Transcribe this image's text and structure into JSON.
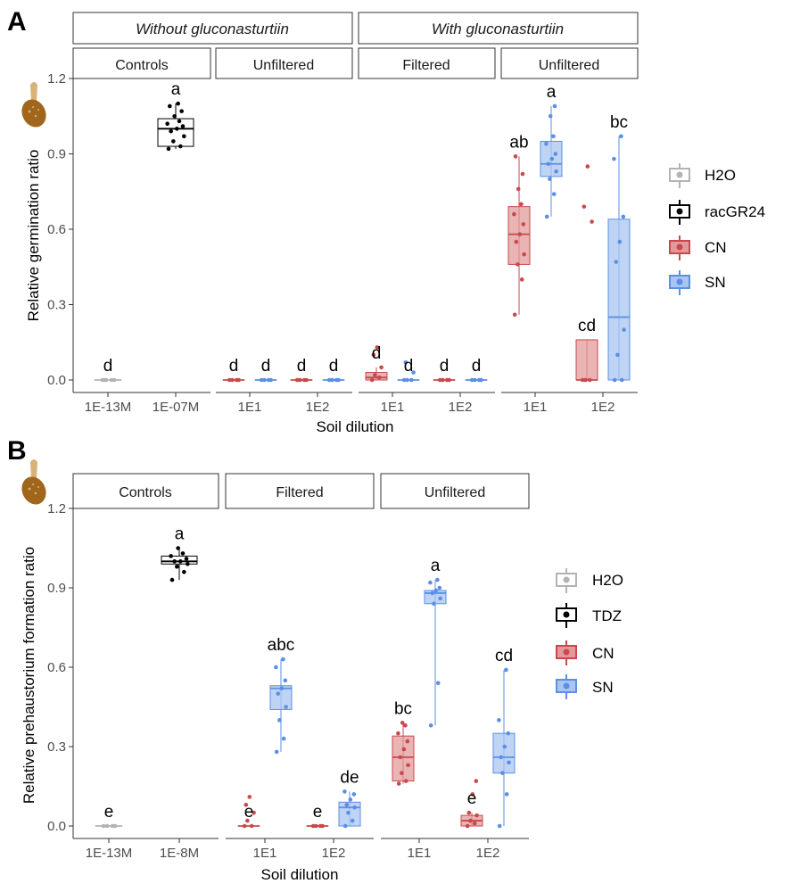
{
  "colors": {
    "H2O": "#b3b3b3",
    "control_black": "#000000",
    "CN": "#c8494d",
    "CN_fill": "#e3999b",
    "SN": "#5b8fe3",
    "SN_fill": "#a9c5f2",
    "seed_dark": "#a0661c",
    "seed_light": "#d9b27a"
  },
  "panels": [
    {
      "label": "A",
      "ylabel": "Relative germination ratio",
      "xlabel": "Soil dilution",
      "ylim": [
        0,
        1.2
      ],
      "yticks": [
        "0.0",
        "0.3",
        "0.6",
        "0.9",
        "1.2"
      ],
      "top_strips": [
        "Without gluconasturtiin",
        "With gluconasturtiin"
      ],
      "legend": [
        "H2O",
        "racGR24",
        "CN",
        "SN"
      ],
      "facets": [
        {
          "title": "Controls",
          "categories": [
            "1E-13M",
            "1E-07M"
          ],
          "groups": [
            {
              "category": "1E-13M",
              "series": "H2O",
              "min": 0,
              "q1": 0,
              "median": 0,
              "q3": 0,
              "max": 0,
              "points": [
                0,
                0,
                0,
                0,
                0
              ],
              "letter": "d"
            },
            {
              "category": "1E-07M",
              "series": "racGR24",
              "min": 0.92,
              "q1": 0.93,
              "median": 1.0,
              "q3": 1.04,
              "max": 1.1,
              "points": [
                0.92,
                0.93,
                0.95,
                0.97,
                0.99,
                1.0,
                1.01,
                1.02,
                1.03,
                1.05,
                1.07,
                1.09,
                1.1
              ],
              "letter": "a"
            }
          ]
        },
        {
          "title": "Unfiltered",
          "categories": [
            "1E1",
            "1E2"
          ],
          "groups": [
            {
              "category": "1E1",
              "series": "CN",
              "min": 0,
              "q1": 0,
              "median": 0,
              "q3": 0,
              "max": 0,
              "points": [
                0,
                0,
                0,
                0
              ],
              "letter": "d"
            },
            {
              "category": "1E1",
              "series": "SN",
              "min": 0,
              "q1": 0,
              "median": 0,
              "q3": 0,
              "max": 0,
              "points": [
                0,
                0,
                0,
                0
              ],
              "letter": "d"
            },
            {
              "category": "1E2",
              "series": "CN",
              "min": 0,
              "q1": 0,
              "median": 0,
              "q3": 0,
              "max": 0,
              "points": [
                0,
                0,
                0,
                0
              ],
              "letter": "d"
            },
            {
              "category": "1E2",
              "series": "SN",
              "min": 0,
              "q1": 0,
              "median": 0,
              "q3": 0,
              "max": 0,
              "points": [
                0,
                0,
                0,
                0
              ],
              "letter": "d"
            }
          ]
        },
        {
          "title": "Filtered",
          "categories": [
            "1E1",
            "1E2"
          ],
          "groups": [
            {
              "category": "1E1",
              "series": "CN",
              "min": 0,
              "q1": 0.0,
              "median": 0.01,
              "q3": 0.03,
              "max": 0.05,
              "points": [
                0,
                0.01,
                0.02,
                0.05,
                0.1,
                0.13
              ],
              "letter": "d"
            },
            {
              "category": "1E1",
              "series": "SN",
              "min": 0,
              "q1": 0,
              "median": 0,
              "q3": 0,
              "max": 0,
              "points": [
                0,
                0,
                0,
                0.03,
                0.07
              ],
              "letter": "d"
            },
            {
              "category": "1E2",
              "series": "CN",
              "min": 0,
              "q1": 0,
              "median": 0,
              "q3": 0,
              "max": 0,
              "points": [
                0,
                0,
                0,
                0
              ],
              "letter": "d"
            },
            {
              "category": "1E2",
              "series": "SN",
              "min": 0,
              "q1": 0,
              "median": 0,
              "q3": 0,
              "max": 0,
              "points": [
                0,
                0,
                0,
                0
              ],
              "letter": "d"
            }
          ]
        },
        {
          "title": "Unfiltered",
          "categories": [
            "1E1",
            "1E2"
          ],
          "groups": [
            {
              "category": "1E1",
              "series": "CN",
              "min": 0.26,
              "q1": 0.46,
              "median": 0.58,
              "q3": 0.69,
              "max": 0.89,
              "points": [
                0.26,
                0.4,
                0.46,
                0.5,
                0.55,
                0.58,
                0.62,
                0.66,
                0.7,
                0.76,
                0.82,
                0.89
              ],
              "letter": "ab"
            },
            {
              "category": "1E1",
              "series": "SN",
              "min": 0.65,
              "q1": 0.81,
              "median": 0.86,
              "q3": 0.95,
              "max": 1.09,
              "points": [
                0.65,
                0.74,
                0.8,
                0.83,
                0.86,
                0.88,
                0.9,
                0.94,
                0.97,
                1.05,
                1.09
              ],
              "letter": "a"
            },
            {
              "category": "1E2",
              "series": "CN",
              "min": 0,
              "q1": 0,
              "median": 0,
              "q3": 0.16,
              "max": 0.16,
              "points": [
                0,
                0,
                0,
                0.63,
                0.69,
                0.85
              ],
              "letter": "cd"
            },
            {
              "category": "1E2",
              "series": "SN",
              "min": 0,
              "q1": 0,
              "median": 0.25,
              "q3": 0.64,
              "max": 0.97,
              "points": [
                0,
                0,
                0.1,
                0.2,
                0.47,
                0.55,
                0.65,
                0.88,
                0.97
              ],
              "letter": "bc"
            }
          ]
        }
      ]
    },
    {
      "label": "B",
      "ylabel": "Relative prehaustorium formation ratio",
      "xlabel": "Soil dilution",
      "ylim": [
        0,
        1.2
      ],
      "yticks": [
        "0.0",
        "0.3",
        "0.6",
        "0.9",
        "1.2"
      ],
      "top_strips": [],
      "legend": [
        "H2O",
        "TDZ",
        "CN",
        "SN"
      ],
      "facets": [
        {
          "title": "Controls",
          "categories": [
            "1E-13M",
            "1E-8M"
          ],
          "groups": [
            {
              "category": "1E-13M",
              "series": "H2O",
              "min": 0,
              "q1": 0,
              "median": 0,
              "q3": 0,
              "max": 0,
              "points": [
                0,
                0,
                0,
                0
              ],
              "letter": "e"
            },
            {
              "category": "1E-8M",
              "series": "TDZ",
              "min": 0.93,
              "q1": 0.99,
              "median": 1.0,
              "q3": 1.02,
              "max": 1.05,
              "points": [
                0.93,
                0.96,
                0.98,
                0.99,
                1.0,
                1.0,
                1.01,
                1.02,
                1.03,
                1.05
              ],
              "letter": "a"
            }
          ]
        },
        {
          "title": "Filtered",
          "categories": [
            "1E1",
            "1E2"
          ],
          "groups": [
            {
              "category": "1E1",
              "series": "CN",
              "min": 0,
              "q1": 0,
              "median": 0,
              "q3": 0,
              "max": 0,
              "points": [
                0,
                0,
                0.02,
                0.05,
                0.08,
                0.11
              ],
              "letter": "e"
            },
            {
              "category": "1E1",
              "series": "SN",
              "min": 0.28,
              "q1": 0.44,
              "median": 0.52,
              "q3": 0.53,
              "max": 0.63,
              "points": [
                0.28,
                0.33,
                0.4,
                0.45,
                0.5,
                0.52,
                0.55,
                0.6,
                0.63
              ],
              "letter": "abc"
            },
            {
              "category": "1E2",
              "series": "CN",
              "min": 0,
              "q1": 0,
              "median": 0,
              "q3": 0,
              "max": 0,
              "points": [
                0,
                0,
                0,
                0
              ],
              "letter": "e"
            },
            {
              "category": "1E2",
              "series": "SN",
              "min": 0,
              "q1": 0,
              "median": 0.07,
              "q3": 0.09,
              "max": 0.13,
              "points": [
                0,
                0.02,
                0.05,
                0.07,
                0.08,
                0.1,
                0.12,
                0.13
              ],
              "letter": "de"
            }
          ]
        },
        {
          "title": "Unfiltered",
          "categories": [
            "1E1",
            "1E2"
          ],
          "groups": [
            {
              "category": "1E1",
              "series": "CN",
              "min": 0.16,
              "q1": 0.17,
              "median": 0.26,
              "q3": 0.34,
              "max": 0.39,
              "points": [
                0.16,
                0.17,
                0.2,
                0.23,
                0.26,
                0.29,
                0.32,
                0.35,
                0.38,
                0.39
              ],
              "letter": "bc"
            },
            {
              "category": "1E1",
              "series": "SN",
              "min": 0.38,
              "q1": 0.84,
              "median": 0.88,
              "q3": 0.89,
              "max": 0.93,
              "points": [
                0.38,
                0.54,
                0.84,
                0.86,
                0.88,
                0.89,
                0.9,
                0.92,
                0.93
              ],
              "letter": "a"
            },
            {
              "category": "1E2",
              "series": "CN",
              "min": 0,
              "q1": 0,
              "median": 0.02,
              "q3": 0.04,
              "max": 0.05,
              "points": [
                0,
                0.01,
                0.02,
                0.04,
                0.05,
                0.12,
                0.17
              ],
              "letter": "e"
            },
            {
              "category": "1E2",
              "series": "SN",
              "min": 0,
              "q1": 0.2,
              "median": 0.26,
              "q3": 0.35,
              "max": 0.59,
              "points": [
                0,
                0.12,
                0.2,
                0.24,
                0.26,
                0.3,
                0.35,
                0.4,
                0.59
              ],
              "letter": "cd"
            }
          ]
        }
      ]
    }
  ],
  "chart_data": [
    {
      "type": "box",
      "title": "A",
      "ylabel": "Relative germination ratio",
      "xlabel": "Soil dilution",
      "ylim": [
        0,
        1.2
      ],
      "facets": [
        "Without gluconasturtiin / Controls",
        "Without gluconasturtiin / Unfiltered",
        "With gluconasturtiin / Filtered",
        "With gluconasturtiin / Unfiltered"
      ],
      "legend": [
        "H2O",
        "racGR24",
        "CN",
        "SN"
      ],
      "medians": {
        "Controls": {
          "1E-13M H2O": 0,
          "1E-07M racGR24": 1.0
        },
        "Without/Unfiltered": {
          "1E1 CN": 0,
          "1E1 SN": 0,
          "1E2 CN": 0,
          "1E2 SN": 0
        },
        "Filtered": {
          "1E1 CN": 0.01,
          "1E1 SN": 0,
          "1E2 CN": 0,
          "1E2 SN": 0
        },
        "With/Unfiltered": {
          "1E1 CN": 0.58,
          "1E1 SN": 0.86,
          "1E2 CN": 0,
          "1E2 SN": 0.25
        }
      },
      "letters": [
        "d",
        "a",
        "d",
        "d",
        "d",
        "d",
        "d",
        "d",
        "d",
        "d",
        "ab",
        "a",
        "cd",
        "bc"
      ]
    },
    {
      "type": "box",
      "title": "B",
      "ylabel": "Relative prehaustorium formation ratio",
      "xlabel": "Soil dilution",
      "ylim": [
        0,
        1.2
      ],
      "facets": [
        "Controls",
        "Filtered",
        "Unfiltered"
      ],
      "legend": [
        "H2O",
        "TDZ",
        "CN",
        "SN"
      ],
      "medians": {
        "Controls": {
          "1E-13M H2O": 0,
          "1E-8M TDZ": 1.0
        },
        "Filtered": {
          "1E1 CN": 0,
          "1E1 SN": 0.52,
          "1E2 CN": 0,
          "1E2 SN": 0.07
        },
        "Unfiltered": {
          "1E1 CN": 0.26,
          "1E1 SN": 0.88,
          "1E2 CN": 0.02,
          "1E2 SN": 0.26
        }
      },
      "letters": [
        "e",
        "a",
        "e",
        "abc",
        "e",
        "de",
        "bc",
        "a",
        "e",
        "cd"
      ]
    }
  ]
}
